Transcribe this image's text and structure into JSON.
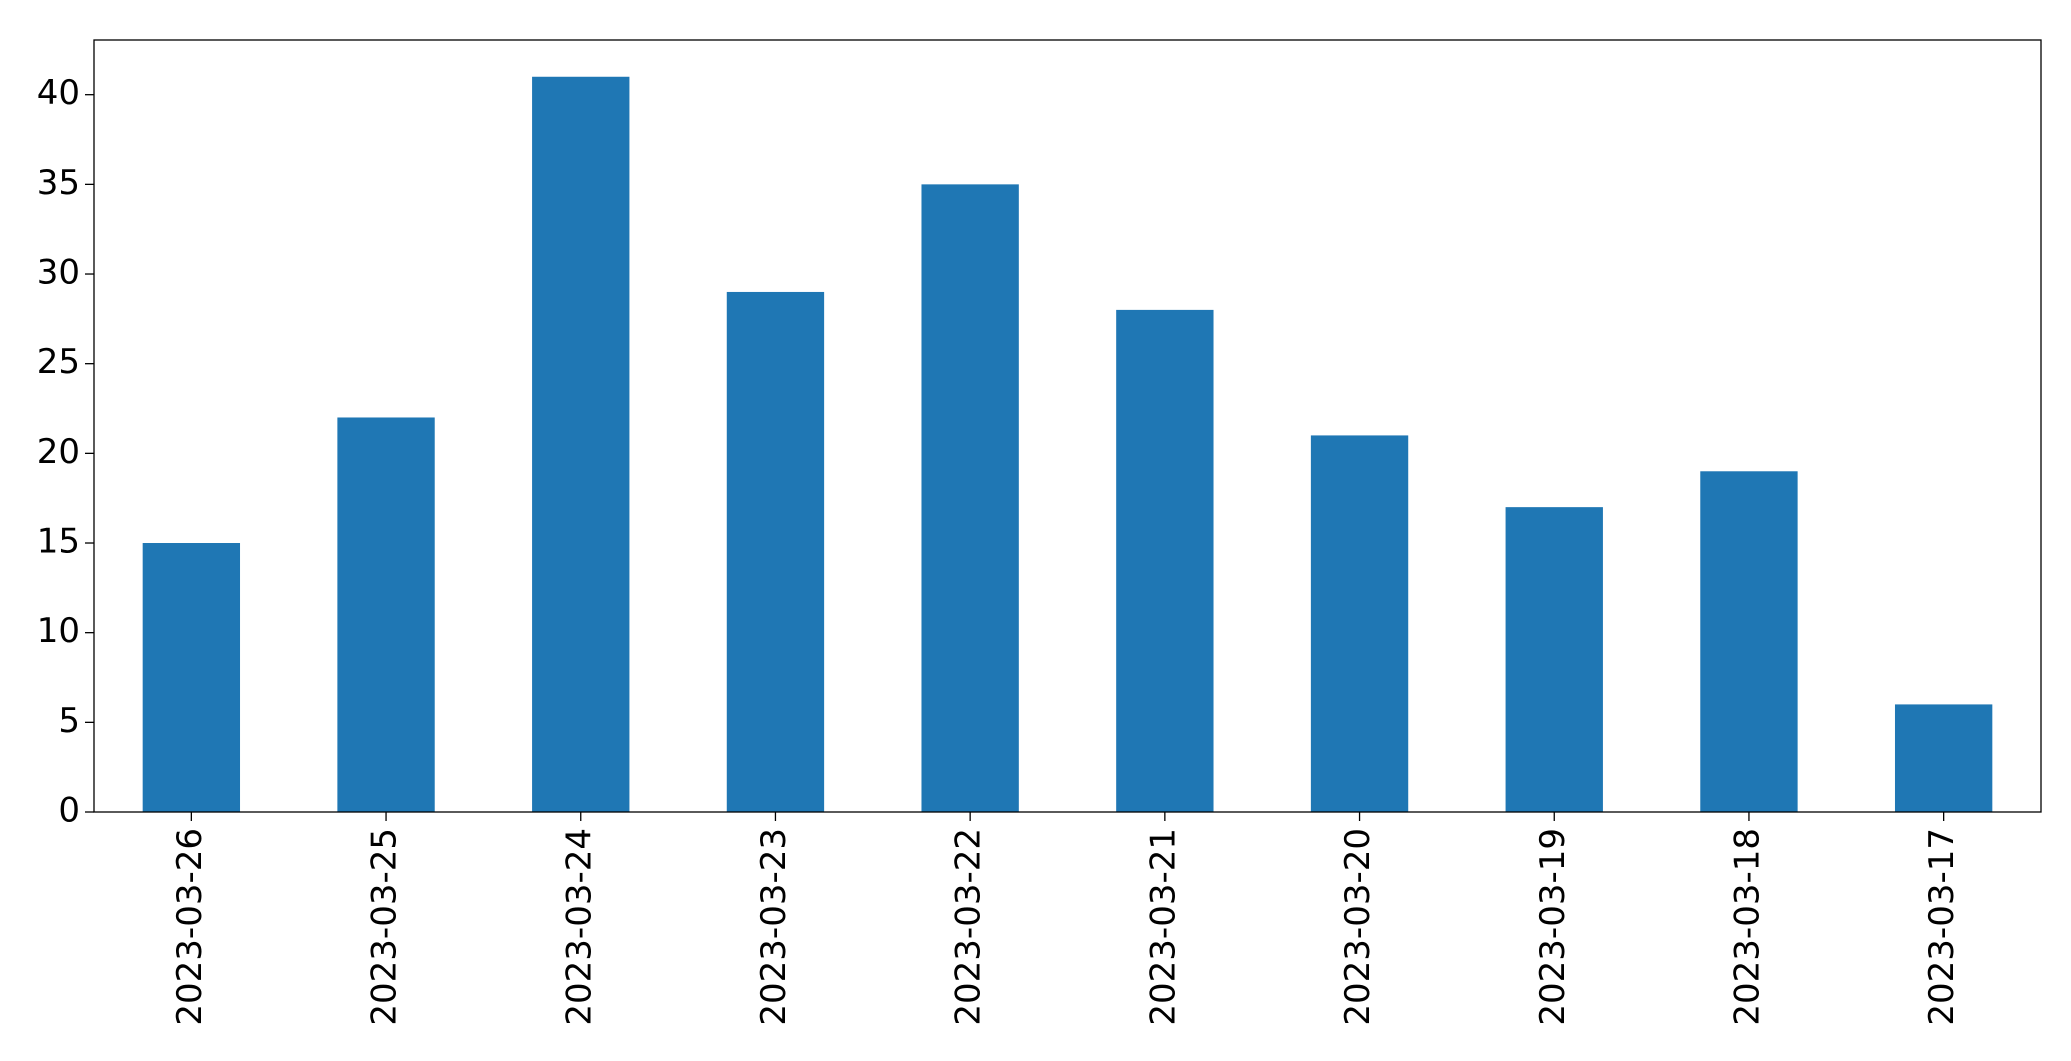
{
  "chart_data": {
    "type": "bar",
    "categories": [
      "2023-03-26",
      "2023-03-25",
      "2023-03-24",
      "2023-03-23",
      "2023-03-22",
      "2023-03-21",
      "2023-03-20",
      "2023-03-19",
      "2023-03-18",
      "2023-03-17"
    ],
    "values": [
      15,
      22,
      41,
      29,
      35,
      28,
      21,
      17,
      19,
      6
    ],
    "color": "#1f77b4",
    "ylim": [
      0,
      43.05
    ],
    "yticks": [
      0,
      5,
      10,
      15,
      20,
      25,
      30,
      35,
      40
    ],
    "grid": false
  }
}
